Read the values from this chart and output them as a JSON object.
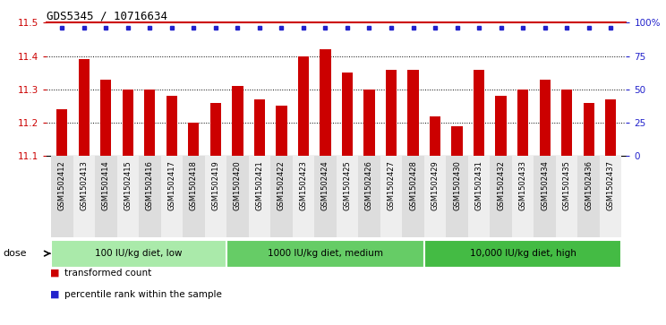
{
  "title": "GDS5345 / 10716634",
  "samples": [
    "GSM1502412",
    "GSM1502413",
    "GSM1502414",
    "GSM1502415",
    "GSM1502416",
    "GSM1502417",
    "GSM1502418",
    "GSM1502419",
    "GSM1502420",
    "GSM1502421",
    "GSM1502422",
    "GSM1502423",
    "GSM1502424",
    "GSM1502425",
    "GSM1502426",
    "GSM1502427",
    "GSM1502428",
    "GSM1502429",
    "GSM1502430",
    "GSM1502431",
    "GSM1502432",
    "GSM1502433",
    "GSM1502434",
    "GSM1502435",
    "GSM1502436",
    "GSM1502437"
  ],
  "values": [
    11.24,
    11.39,
    11.33,
    11.3,
    11.3,
    11.28,
    11.2,
    11.26,
    11.31,
    11.27,
    11.25,
    11.4,
    11.42,
    11.35,
    11.3,
    11.36,
    11.36,
    11.22,
    11.19,
    11.36,
    11.28,
    11.3,
    11.33,
    11.3,
    11.26,
    11.27
  ],
  "bar_color": "#cc0000",
  "percentile_color": "#2222cc",
  "ylim": [
    11.1,
    11.5
  ],
  "yticks": [
    11.1,
    11.2,
    11.3,
    11.4,
    11.5
  ],
  "right_ytick_pcts": [
    0,
    25,
    50,
    75,
    100
  ],
  "right_ytick_labels": [
    "0",
    "25",
    "50",
    "75",
    "100%"
  ],
  "groups": [
    {
      "label": "100 IU/kg diet, low",
      "start": 0,
      "end": 8
    },
    {
      "label": "1000 IU/kg diet, medium",
      "start": 8,
      "end": 17
    },
    {
      "label": "10,000 IU/kg diet, high",
      "start": 17,
      "end": 26
    }
  ],
  "group_colors": [
    "#aaeaaa",
    "#66cc66",
    "#44bb44"
  ],
  "dose_label": "dose",
  "legend_items": [
    {
      "label": "transformed count",
      "color": "#cc0000"
    },
    {
      "label": "percentile rank within the sample",
      "color": "#2222cc"
    }
  ],
  "plot_bg": "#ffffff",
  "tick_label_bg_even": "#dddddd",
  "tick_label_bg_odd": "#eeeeee",
  "top_line_color": "#cc0000",
  "grid_color": "#000000"
}
